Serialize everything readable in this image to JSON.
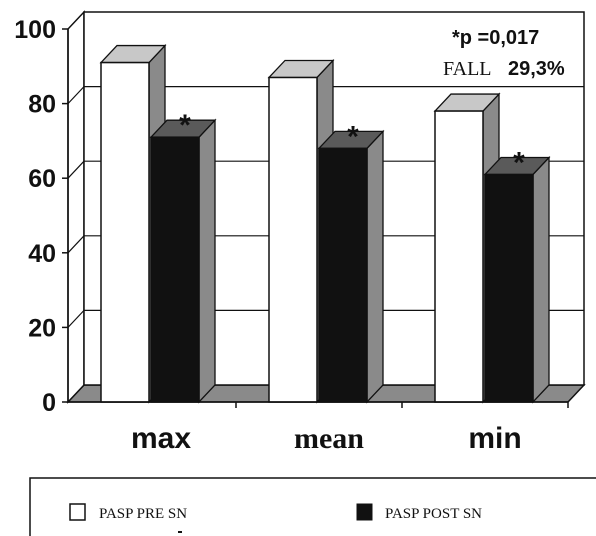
{
  "chart_data": {
    "type": "bar",
    "title": "",
    "xlabel": "",
    "ylabel": "",
    "ylim": [
      0,
      100
    ],
    "yticks": [
      "0",
      "20",
      "40",
      "60",
      "80",
      "100"
    ],
    "categories": [
      "max",
      "mean",
      "min"
    ],
    "series": [
      {
        "name": "PASP PRE SN",
        "values": [
          91,
          87,
          78
        ],
        "color": "#ffffff"
      },
      {
        "name": "PASP POST SN",
        "values": [
          71,
          68,
          61
        ],
        "color": "#111111"
      }
    ],
    "significance_marks": [
      "*",
      "*",
      "*"
    ],
    "annotations": [
      "*p =0,017",
      "FALL",
      "29,3%"
    ],
    "grid": true,
    "legend_position": "bottom"
  }
}
